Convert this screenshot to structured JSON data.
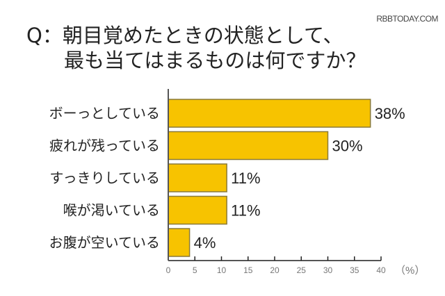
{
  "watermark": "RBBTODAY.COM",
  "chart_data": {
    "type": "bar",
    "orientation": "horizontal",
    "title": "Q：朝目覚めたときの状態として、最も当てはまるものは何ですか？",
    "title_lines": [
      "Q：朝目覚めたときの状態として、",
      "最も当てはまるものは何ですか？"
    ],
    "categories": [
      "ボーっとしている",
      "疲れが残っている",
      "すっきりしている",
      "喉が渇いている",
      "お腹が空いている"
    ],
    "values": [
      38,
      30,
      11,
      11,
      4
    ],
    "value_labels": [
      "38%",
      "30%",
      "11%",
      "11%",
      "4%"
    ],
    "xlim": [
      0,
      40
    ],
    "xticks": [
      0,
      5,
      10,
      15,
      20,
      25,
      30,
      35,
      40
    ],
    "xtick_labels": [
      "0",
      "5",
      "10",
      "15",
      "20",
      "25",
      "30",
      "35",
      "40"
    ],
    "xunit": "（%）",
    "grid": false,
    "colors": {
      "bar": "#f7c300",
      "bar_border": "#8a7a3a",
      "axis": "#555555"
    }
  }
}
